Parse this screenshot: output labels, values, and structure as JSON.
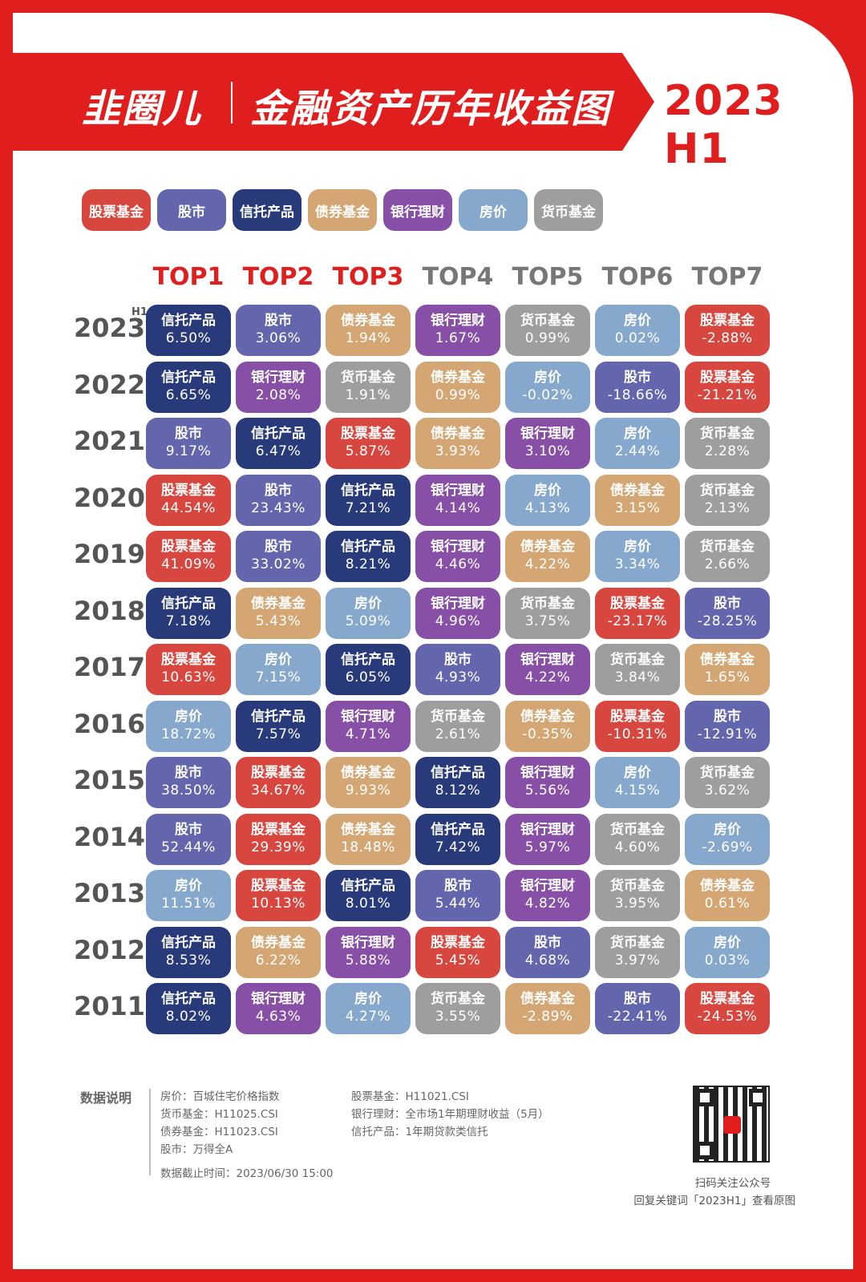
{
  "header": {
    "logo": "韭圈儿",
    "title": "金融资产历年收益图",
    "period": "2023 H1"
  },
  "colors": {
    "brand_red": "#e01e1e",
    "股票基金": "#d8473f",
    "股市": "#6366ad",
    "信托产品": "#283a7a",
    "债券基金": "#d3a673",
    "银行理财": "#8750a6",
    "房价": "#86a8cc",
    "货币基金": "#9e9e9e",
    "header_top": "#e01e1e",
    "header_rest": "#777777"
  },
  "legend": [
    {
      "label": "股票基金"
    },
    {
      "label": "股市"
    },
    {
      "label": "信托产品"
    },
    {
      "label": "债券基金"
    },
    {
      "label": "银行理财"
    },
    {
      "label": "房价"
    },
    {
      "label": "货币基金"
    }
  ],
  "chart_data": {
    "type": "table",
    "columns": [
      "TOP1",
      "TOP2",
      "TOP3",
      "TOP4",
      "TOP5",
      "TOP6",
      "TOP7"
    ],
    "top_highlight_count": 3,
    "rows": [
      {
        "year": "2023",
        "sup": "H1",
        "cells": [
          [
            "信托产品",
            "6.50%"
          ],
          [
            "股市",
            "3.06%"
          ],
          [
            "债券基金",
            "1.94%"
          ],
          [
            "银行理财",
            "1.67%"
          ],
          [
            "货币基金",
            "0.99%"
          ],
          [
            "房价",
            "0.02%"
          ],
          [
            "股票基金",
            "-2.88%"
          ]
        ]
      },
      {
        "year": "2022",
        "cells": [
          [
            "信托产品",
            "6.65%"
          ],
          [
            "银行理财",
            "2.08%"
          ],
          [
            "货币基金",
            "1.91%"
          ],
          [
            "债券基金",
            "0.99%"
          ],
          [
            "房价",
            "-0.02%"
          ],
          [
            "股市",
            "-18.66%"
          ],
          [
            "股票基金",
            "-21.21%"
          ]
        ]
      },
      {
        "year": "2021",
        "cells": [
          [
            "股市",
            "9.17%"
          ],
          [
            "信托产品",
            "6.47%"
          ],
          [
            "股票基金",
            "5.87%"
          ],
          [
            "债券基金",
            "3.93%"
          ],
          [
            "银行理财",
            "3.10%"
          ],
          [
            "房价",
            "2.44%"
          ],
          [
            "货币基金",
            "2.28%"
          ]
        ]
      },
      {
        "year": "2020",
        "cells": [
          [
            "股票基金",
            "44.54%"
          ],
          [
            "股市",
            "23.43%"
          ],
          [
            "信托产品",
            "7.21%"
          ],
          [
            "银行理财",
            "4.14%"
          ],
          [
            "房价",
            "4.13%"
          ],
          [
            "债券基金",
            "3.15%"
          ],
          [
            "货币基金",
            "2.13%"
          ]
        ]
      },
      {
        "year": "2019",
        "cells": [
          [
            "股票基金",
            "41.09%"
          ],
          [
            "股市",
            "33.02%"
          ],
          [
            "信托产品",
            "8.21%"
          ],
          [
            "银行理财",
            "4.46%"
          ],
          [
            "债券基金",
            "4.22%"
          ],
          [
            "房价",
            "3.34%"
          ],
          [
            "货币基金",
            "2.66%"
          ]
        ]
      },
      {
        "year": "2018",
        "cells": [
          [
            "信托产品",
            "7.18%"
          ],
          [
            "债券基金",
            "5.43%"
          ],
          [
            "房价",
            "5.09%"
          ],
          [
            "银行理财",
            "4.96%"
          ],
          [
            "货币基金",
            "3.75%"
          ],
          [
            "股票基金",
            "-23.17%"
          ],
          [
            "股市",
            "-28.25%"
          ]
        ]
      },
      {
        "year": "2017",
        "cells": [
          [
            "股票基金",
            "10.63%"
          ],
          [
            "房价",
            "7.15%"
          ],
          [
            "信托产品",
            "6.05%"
          ],
          [
            "股市",
            "4.93%"
          ],
          [
            "银行理财",
            "4.22%"
          ],
          [
            "货币基金",
            "3.84%"
          ],
          [
            "债券基金",
            "1.65%"
          ]
        ]
      },
      {
        "year": "2016",
        "cells": [
          [
            "房价",
            "18.72%"
          ],
          [
            "信托产品",
            "7.57%"
          ],
          [
            "银行理财",
            "4.71%"
          ],
          [
            "货币基金",
            "2.61%"
          ],
          [
            "债券基金",
            "-0.35%"
          ],
          [
            "股票基金",
            "-10.31%"
          ],
          [
            "股市",
            "-12.91%"
          ]
        ]
      },
      {
        "year": "2015",
        "cells": [
          [
            "股市",
            "38.50%"
          ],
          [
            "股票基金",
            "34.67%"
          ],
          [
            "债券基金",
            "9.93%"
          ],
          [
            "信托产品",
            "8.12%"
          ],
          [
            "银行理财",
            "5.56%"
          ],
          [
            "房价",
            "4.15%"
          ],
          [
            "货币基金",
            "3.62%"
          ]
        ]
      },
      {
        "year": "2014",
        "cells": [
          [
            "股市",
            "52.44%"
          ],
          [
            "股票基金",
            "29.39%"
          ],
          [
            "债券基金",
            "18.48%"
          ],
          [
            "信托产品",
            "7.42%"
          ],
          [
            "银行理财",
            "5.97%"
          ],
          [
            "货币基金",
            "4.60%"
          ],
          [
            "房价",
            "-2.69%"
          ]
        ]
      },
      {
        "year": "2013",
        "cells": [
          [
            "房价",
            "11.51%"
          ],
          [
            "股票基金",
            "10.13%"
          ],
          [
            "信托产品",
            "8.01%"
          ],
          [
            "股市",
            "5.44%"
          ],
          [
            "银行理财",
            "4.82%"
          ],
          [
            "货币基金",
            "3.95%"
          ],
          [
            "债券基金",
            "0.61%"
          ]
        ]
      },
      {
        "year": "2012",
        "cells": [
          [
            "信托产品",
            "8.53%"
          ],
          [
            "债券基金",
            "6.22%"
          ],
          [
            "银行理财",
            "5.88%"
          ],
          [
            "股票基金",
            "5.45%"
          ],
          [
            "股市",
            "4.68%"
          ],
          [
            "货币基金",
            "3.97%"
          ],
          [
            "房价",
            "0.03%"
          ]
        ]
      },
      {
        "year": "2011",
        "cells": [
          [
            "信托产品",
            "8.02%"
          ],
          [
            "银行理财",
            "4.63%"
          ],
          [
            "房价",
            "4.27%"
          ],
          [
            "货币基金",
            "3.55%"
          ],
          [
            "债券基金",
            "-2.89%"
          ],
          [
            "股市",
            "-22.41%"
          ],
          [
            "股票基金",
            "-24.53%"
          ]
        ]
      }
    ]
  },
  "notes": {
    "title": "数据说明",
    "left": [
      "房价：百城住宅价格指数",
      "货币基金：H11025.CSI",
      "债券基金：H11023.CSI",
      "股市：万得全A"
    ],
    "right": [
      "股票基金：H11021.CSI",
      "银行理财：全市场1年期理财收益（5月）",
      "信托产品：1年期贷款类信托"
    ],
    "cutoff": "数据截止时间：2023/06/30 15:00"
  },
  "qr": {
    "caption": "扫码关注公众号",
    "hint": "回复关键词「2023H1」查看原图"
  }
}
